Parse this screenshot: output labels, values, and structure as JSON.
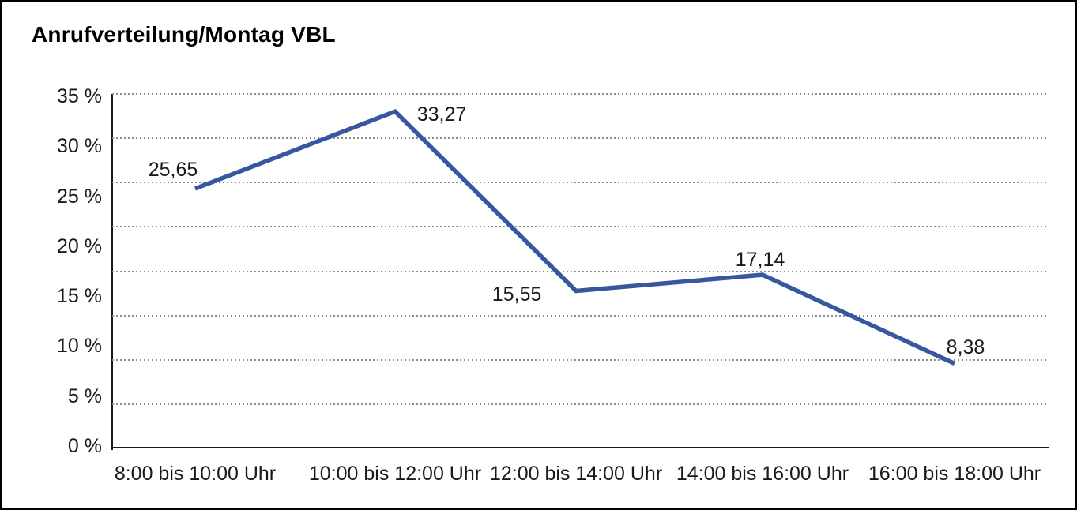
{
  "title": "Anrufverteilung/Montag VBL",
  "chart_data": {
    "type": "line",
    "title": "Anrufverteilung/Montag VBL",
    "categories": [
      "8:00 bis 10:00 Uhr",
      "10:00 bis 12:00 Uhr",
      "12:00 bis 14:00 Uhr",
      "14:00 bis 16:00 Uhr",
      "16:00 bis 18:00 Uhr"
    ],
    "series": [
      {
        "name": "Anrufverteilung Montag VBL",
        "values": [
          25.65,
          33.27,
          15.55,
          17.14,
          8.38
        ],
        "value_labels": [
          "25,65",
          "33,27",
          "15,55",
          "17,14",
          "8,38"
        ],
        "value_label_positions": [
          "above-left",
          "right",
          "left",
          "above",
          "above-right"
        ]
      }
    ],
    "xlabel": "",
    "ylabel": "",
    "ylim": [
      0,
      35
    ],
    "y_ticks": [
      "35 %",
      "30 %",
      "25 %",
      "20 %",
      "15 %",
      "10 %",
      "5 %",
      "0 %"
    ],
    "y_tick_values": [
      35,
      30,
      25,
      20,
      15,
      10,
      5,
      0
    ],
    "grid": "horizontal-dotted",
    "grid_intervals": 8,
    "legend": "none",
    "line_color": "#37579e",
    "grid_color": "#8c8c8c",
    "axis_color": "#1a1a1a",
    "text_color": "#1a1a1a",
    "background": "#ffffff"
  }
}
